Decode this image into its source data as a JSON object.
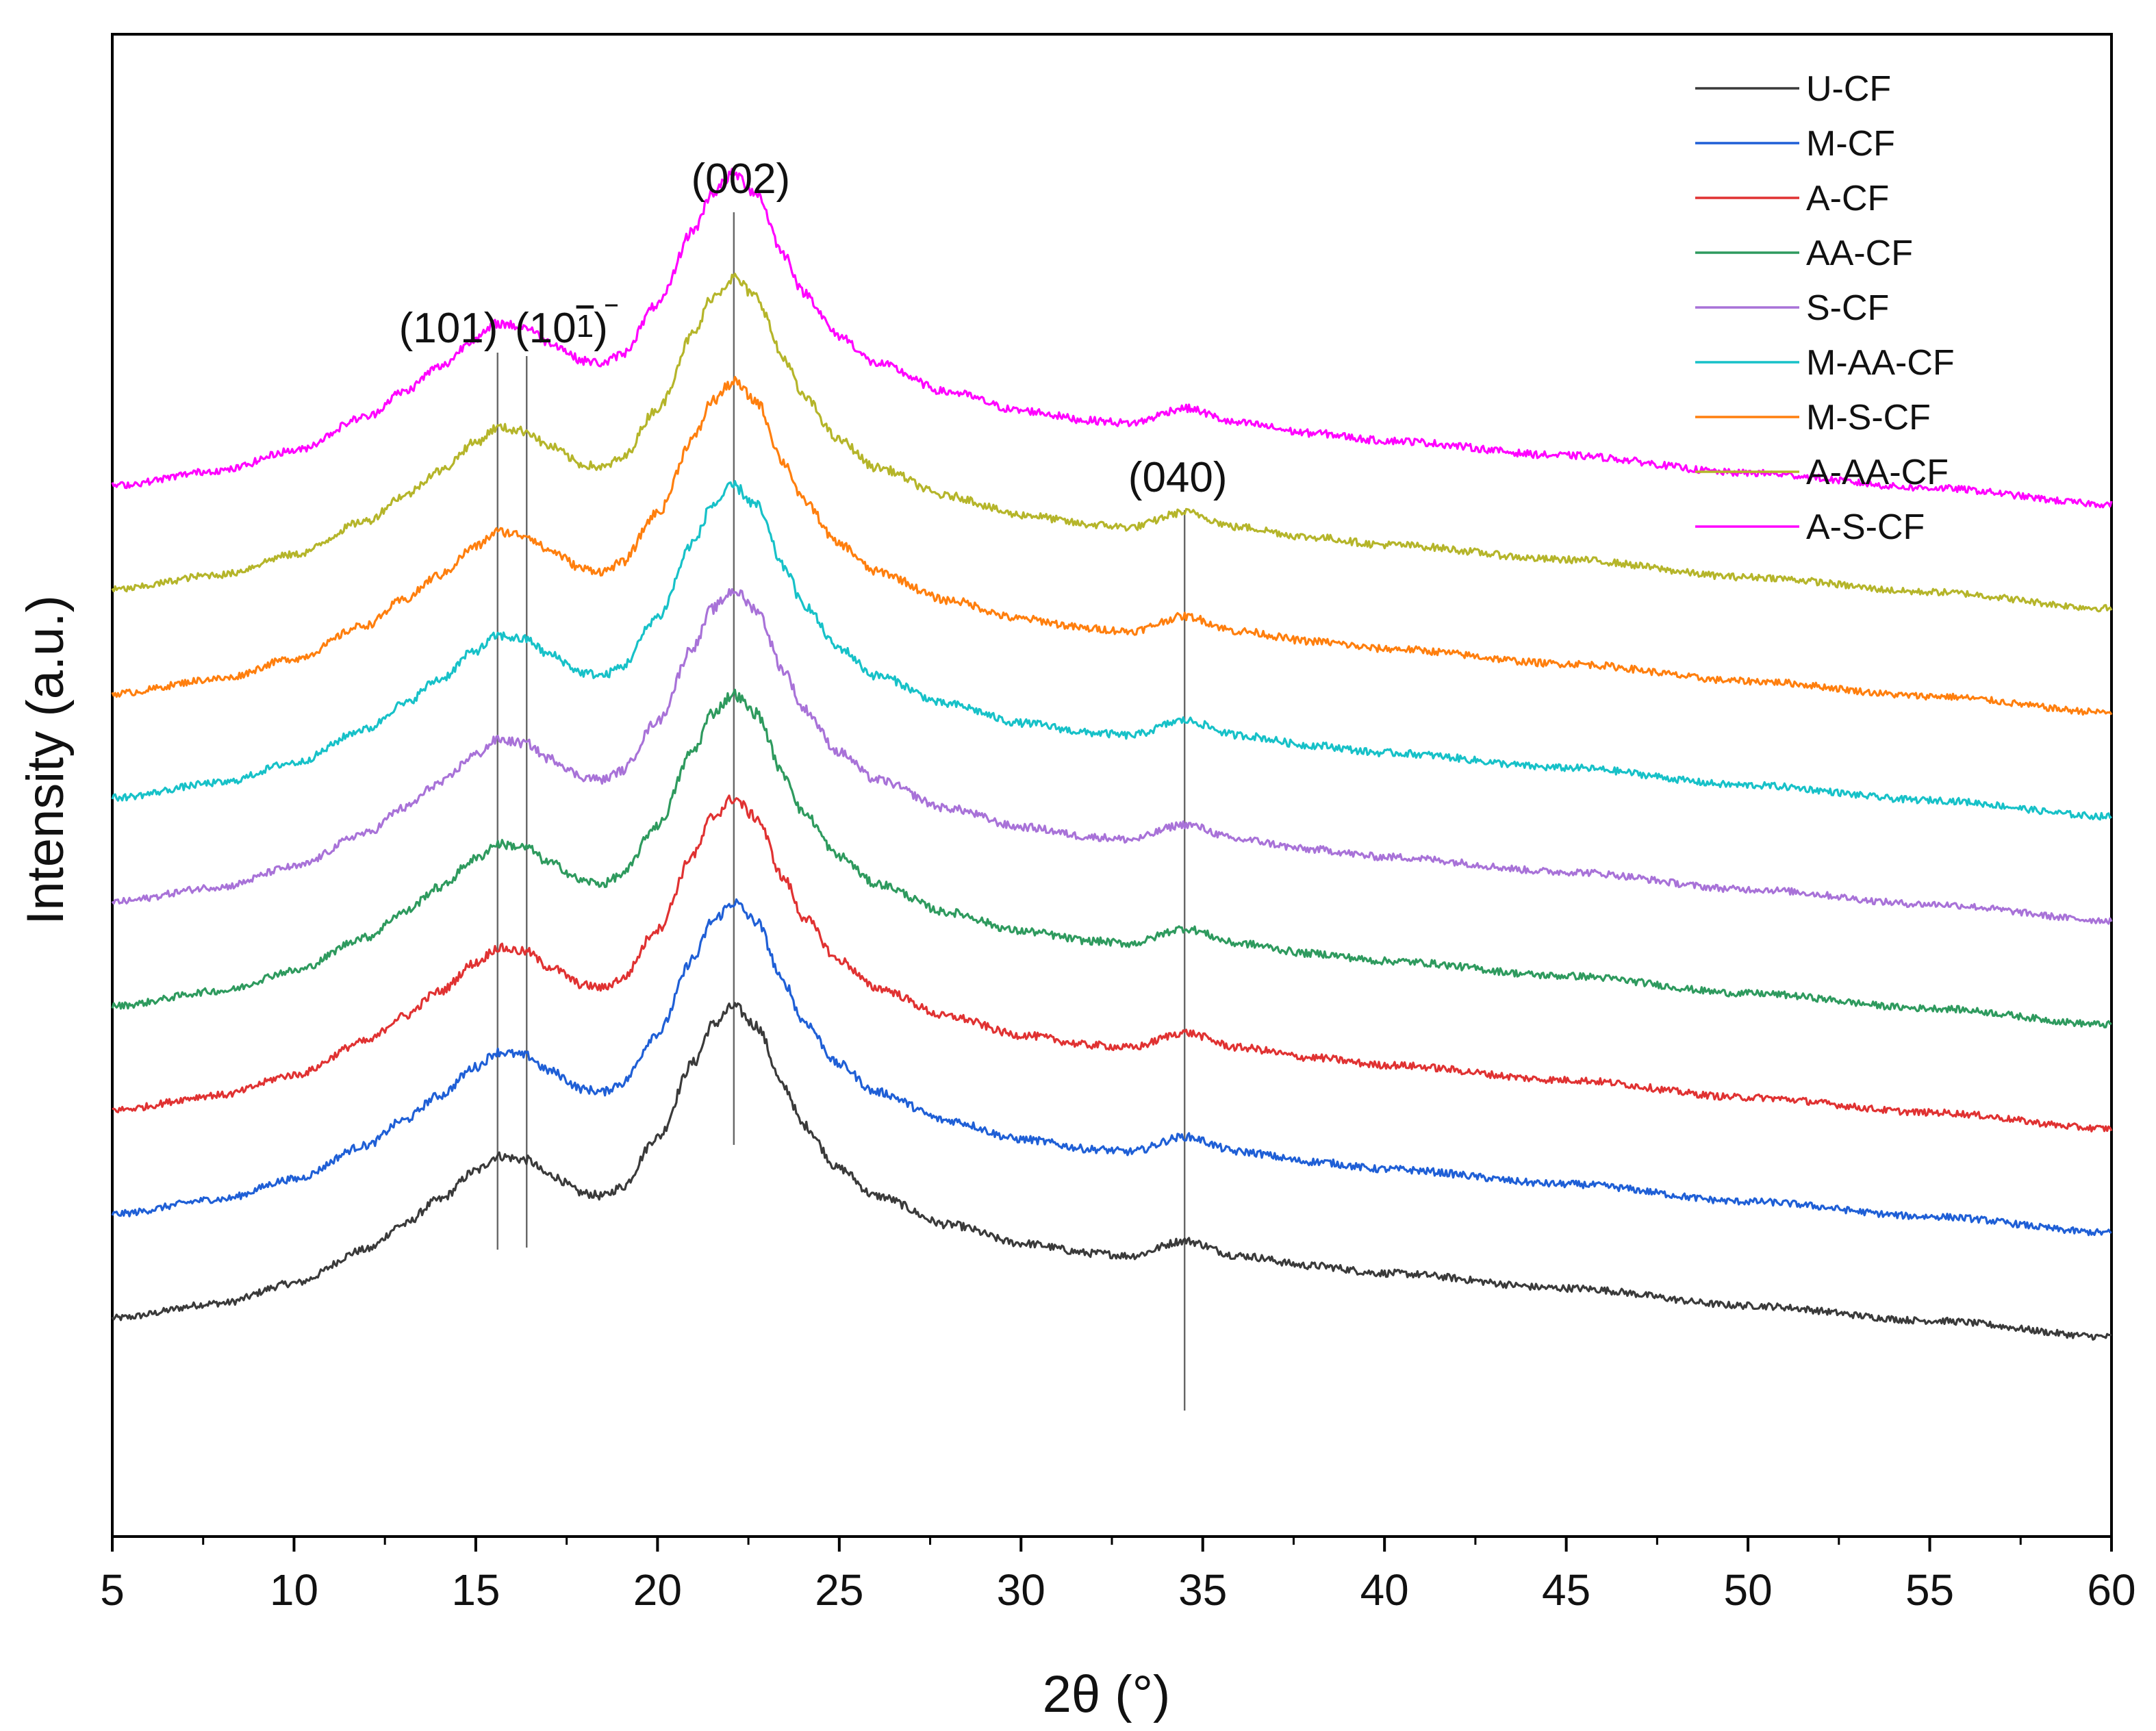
{
  "chart_data": {
    "type": "line",
    "title": "",
    "xlabel": "2θ (°)",
    "ylabel": "Intensity (a.u.)",
    "xlim": [
      5,
      60
    ],
    "x_ticks": [
      5,
      10,
      15,
      20,
      25,
      30,
      35,
      40,
      45,
      50,
      55,
      60
    ],
    "y_ticks_shown": false,
    "legend": {
      "position": "top-right"
    },
    "peaks": [
      {
        "label": "(101)",
        "x": 15.6
      },
      {
        "label": "(10",
        "bar_digit": "1",
        "close": ")",
        "x": 16.4
      },
      {
        "label": "(002)",
        "x": 22.1
      },
      {
        "label": "(040)",
        "x": 34.5
      }
    ],
    "series": [
      {
        "name": "U-CF",
        "color": "#3a3a3a",
        "baseline": 0.0
      },
      {
        "name": "M-CF",
        "color": "#1f5fd6",
        "baseline": 1.0
      },
      {
        "name": "A-CF",
        "color": "#e03232",
        "baseline": 2.0
      },
      {
        "name": "AA-CF",
        "color": "#2e9a5e",
        "baseline": 3.0
      },
      {
        "name": "S-CF",
        "color": "#a872d8",
        "baseline": 4.0
      },
      {
        "name": "M-AA-CF",
        "color": "#17c1c8",
        "baseline": 5.0
      },
      {
        "name": "M-S-CF",
        "color": "#ff7f0e",
        "baseline": 6.0
      },
      {
        "name": "A-AA-CF",
        "color": "#b5b52a",
        "baseline": 7.0
      },
      {
        "name": "A-S-CF",
        "color": "#ff00ff",
        "baseline": 8.0
      }
    ],
    "profile": {
      "x": [
        5,
        8,
        10,
        12,
        13,
        14,
        15,
        15.6,
        16.4,
        17,
        18,
        18.5,
        19,
        20,
        21,
        21.5,
        22.1,
        22.7,
        23.5,
        24,
        25,
        26,
        28,
        30,
        32,
        33,
        34.5,
        36,
        38,
        40,
        45,
        50,
        55,
        60
      ],
      "intensity": [
        0.0,
        0.12,
        0.28,
        0.55,
        0.75,
        0.95,
        1.18,
        1.3,
        1.27,
        1.15,
        1.0,
        0.98,
        1.05,
        1.45,
        2.05,
        2.35,
        2.5,
        2.35,
        1.85,
        1.55,
        1.2,
        0.98,
        0.75,
        0.6,
        0.52,
        0.5,
        0.62,
        0.5,
        0.42,
        0.36,
        0.24,
        0.1,
        -0.02,
        -0.15
      ]
    },
    "noise_amplitude": 0.045
  }
}
